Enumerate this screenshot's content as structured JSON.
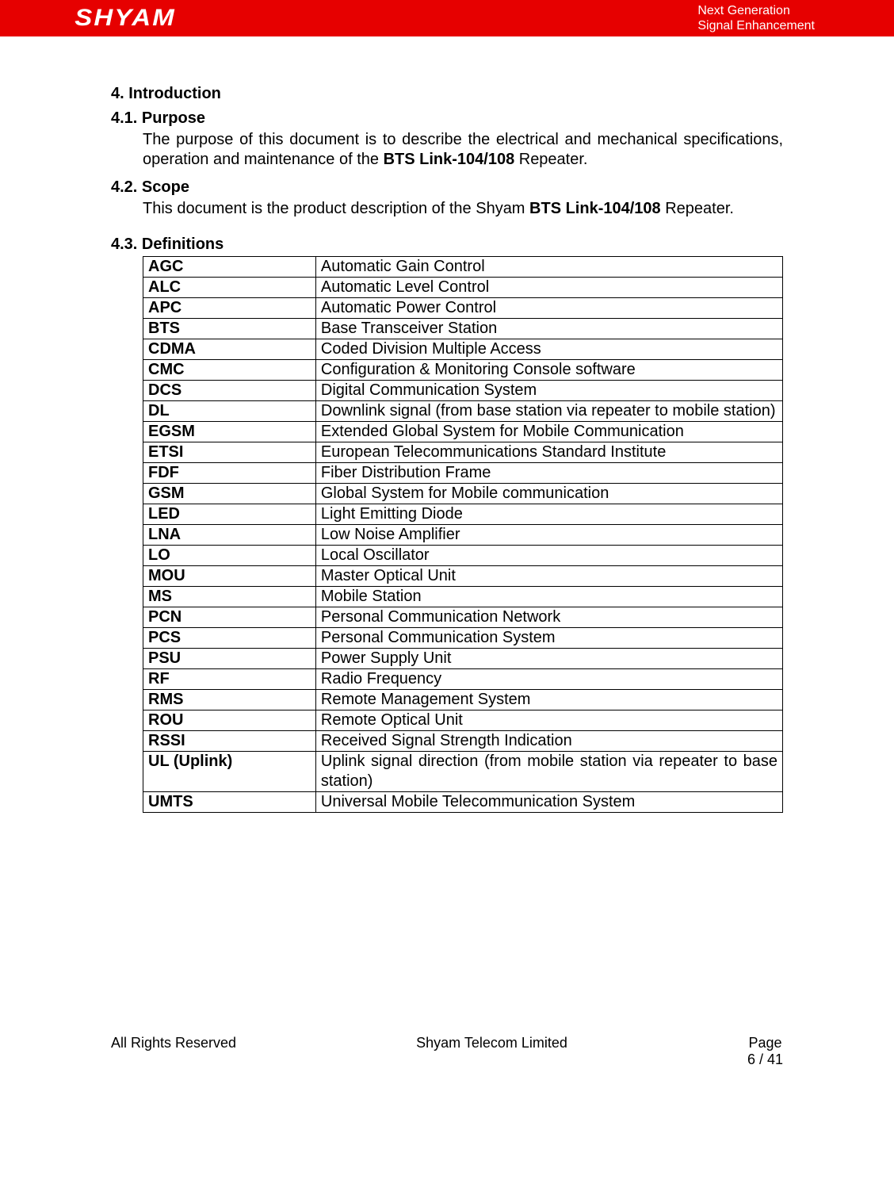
{
  "header": {
    "logo_text": "SHYAM",
    "tag_line1": "Next Generation",
    "tag_line2": "Signal Enhancement"
  },
  "sections": {
    "intro_num": "4. Introduction",
    "purpose_num": "4.1. Purpose",
    "purpose_text_pre": "The purpose of this document is to describe the electrical and mechanical specifications, operation and maintenance of the ",
    "purpose_bold": "BTS Link-104/108",
    "purpose_text_post": " Repeater.",
    "scope_num": "4.2. Scope",
    "scope_text_pre": "This document is the product description of the Shyam ",
    "scope_bold": "BTS Link-104/108",
    "scope_text_post": " Repeater.",
    "definitions_num": "4.3. Definitions"
  },
  "definitions": [
    {
      "term": "AGC",
      "def": "Automatic Gain Control"
    },
    {
      "term": "ALC",
      "def": "Automatic Level Control"
    },
    {
      "term": "APC",
      "def": "Automatic Power Control"
    },
    {
      "term": "BTS",
      "def": "Base Transceiver Station"
    },
    {
      "term": "CDMA",
      "def": "Coded Division Multiple Access"
    },
    {
      "term": "CMC",
      "def": "Configuration & Monitoring Console software"
    },
    {
      "term": "DCS",
      "def": "Digital Communication System"
    },
    {
      "term": "DL",
      "def": "Downlink signal (from base station via repeater to mobile station)"
    },
    {
      "term": "EGSM",
      "def": "Extended Global System for Mobile Communication"
    },
    {
      "term": "ETSI",
      "def": "European Telecommunications Standard Institute"
    },
    {
      "term": "FDF",
      "def": "Fiber Distribution Frame"
    },
    {
      "term": "GSM",
      "def": "Global System for Mobile communication"
    },
    {
      "term": "LED",
      "def": "Light Emitting Diode"
    },
    {
      "term": "LNA",
      "def": "Low Noise Amplifier"
    },
    {
      "term": "LO",
      "def": "Local Oscillator"
    },
    {
      "term": "MOU",
      "def": "Master Optical Unit"
    },
    {
      "term": "MS",
      "def": "Mobile Station"
    },
    {
      "term": "PCN",
      "def": "Personal Communication Network"
    },
    {
      "term": "PCS",
      "def": "Personal Communication System"
    },
    {
      "term": "PSU",
      "def": "Power Supply Unit"
    },
    {
      "term": "RF",
      "def": "Radio Frequency"
    },
    {
      "term": "RMS",
      "def": "Remote Management System"
    },
    {
      "term": "ROU",
      "def": "Remote Optical Unit"
    },
    {
      "term": "RSSI",
      "def": "Received Signal Strength Indication"
    },
    {
      "term": "UL (Uplink)",
      "def": "Uplink signal direction (from mobile station via repeater to base station)"
    },
    {
      "term": "UMTS",
      "def": "Universal Mobile Telecommunication System"
    }
  ],
  "footer": {
    "left": "All Rights Reserved",
    "center": "Shyam Telecom Limited",
    "page_label": "Page",
    "page_num": "6 / 41"
  },
  "colors": {
    "header_bg": "#e60000",
    "header_text": "#ffffff",
    "body_text": "#000000",
    "table_border": "#000000"
  }
}
